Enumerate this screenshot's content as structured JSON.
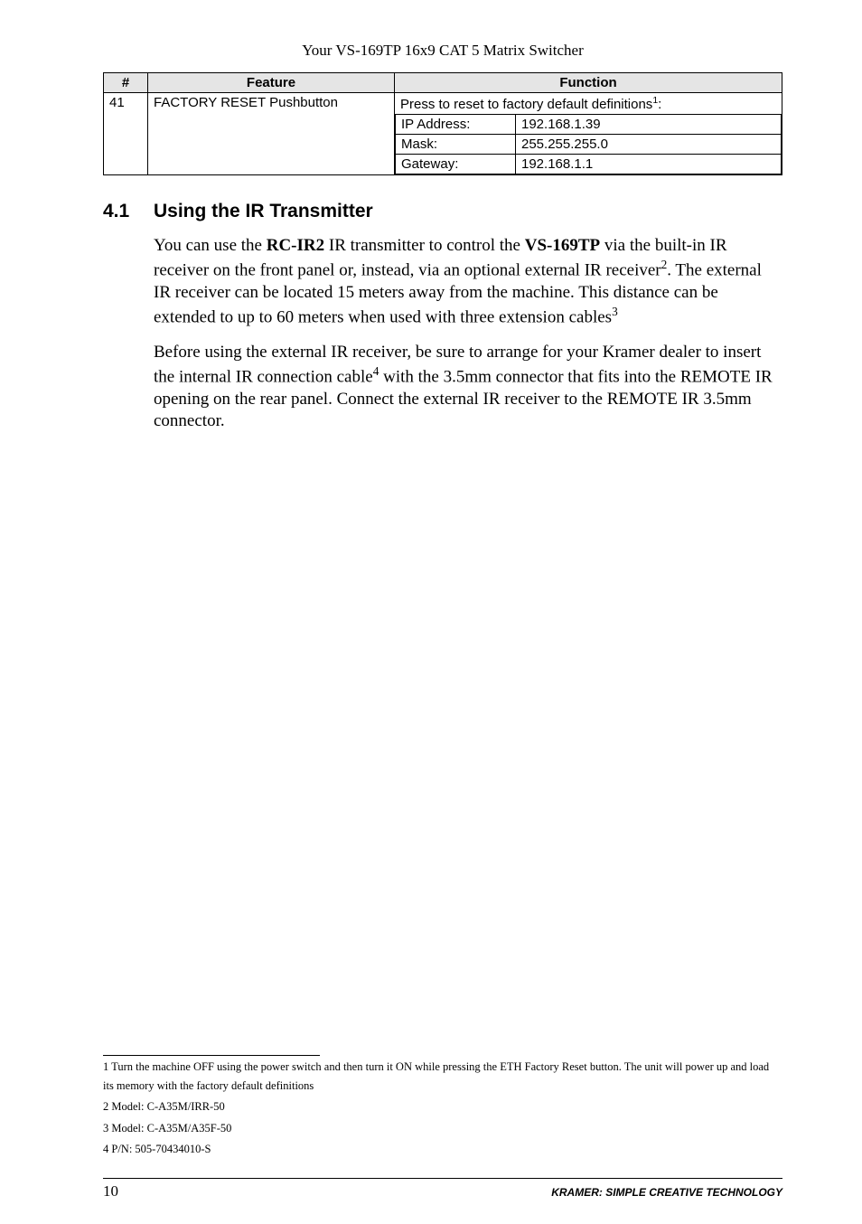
{
  "running_head": "Your VS-169TP 16x9 CAT 5 Matrix Switcher",
  "table": {
    "headers": {
      "num": "#",
      "feature": "Feature",
      "function": "Function"
    },
    "row": {
      "num": "41",
      "feature": "FACTORY RESET Pushbutton",
      "func_lead": "Press to reset to factory default definitions",
      "func_lead_sup": "1",
      "func_lead_tail": ":",
      "defs": [
        {
          "label": "IP Address:",
          "value": "192.168.1.39"
        },
        {
          "label": "Mask:",
          "value": "255.255.255.0"
        },
        {
          "label": "Gateway:",
          "value": "192.168.1.1"
        }
      ]
    }
  },
  "section": {
    "num": "4.1",
    "title": "Using the IR Transmitter"
  },
  "para1_parts": {
    "a": "You can use the ",
    "b": "RC-IR2",
    "c": " IR transmitter to control the ",
    "d": "VS-169TP",
    "e": " via the built-in IR receiver on the front panel or, instead, via an optional external IR receiver",
    "sup2": "2",
    "f": ". The external IR receiver can be located 15 meters away from the machine. This distance can be extended to up to 60 meters when used with three extension cables",
    "sup3": "3"
  },
  "para2_parts": {
    "a": "Before using the external IR receiver, be sure to arrange for your Kramer dealer to insert the internal IR connection cable",
    "sup4": "4",
    "b": " with the 3.5mm connector that fits into the REMOTE IR opening on the rear panel. Connect the external IR receiver to the REMOTE IR 3.5mm connector."
  },
  "footnotes": {
    "f1": "1 Turn the machine OFF using the power switch and then turn it ON while pressing the ETH Factory Reset button. The unit will power up and load its memory with the factory default definitions",
    "f2": "2 Model: C-A35M/IRR-50",
    "f3": "3 Model: C-A35M/A35F-50",
    "f4": "4 P/N: 505-70434010-S"
  },
  "footer": {
    "pageno": "10",
    "tagline": "KRAMER:  SIMPLE CREATIVE TECHNOLOGY"
  }
}
